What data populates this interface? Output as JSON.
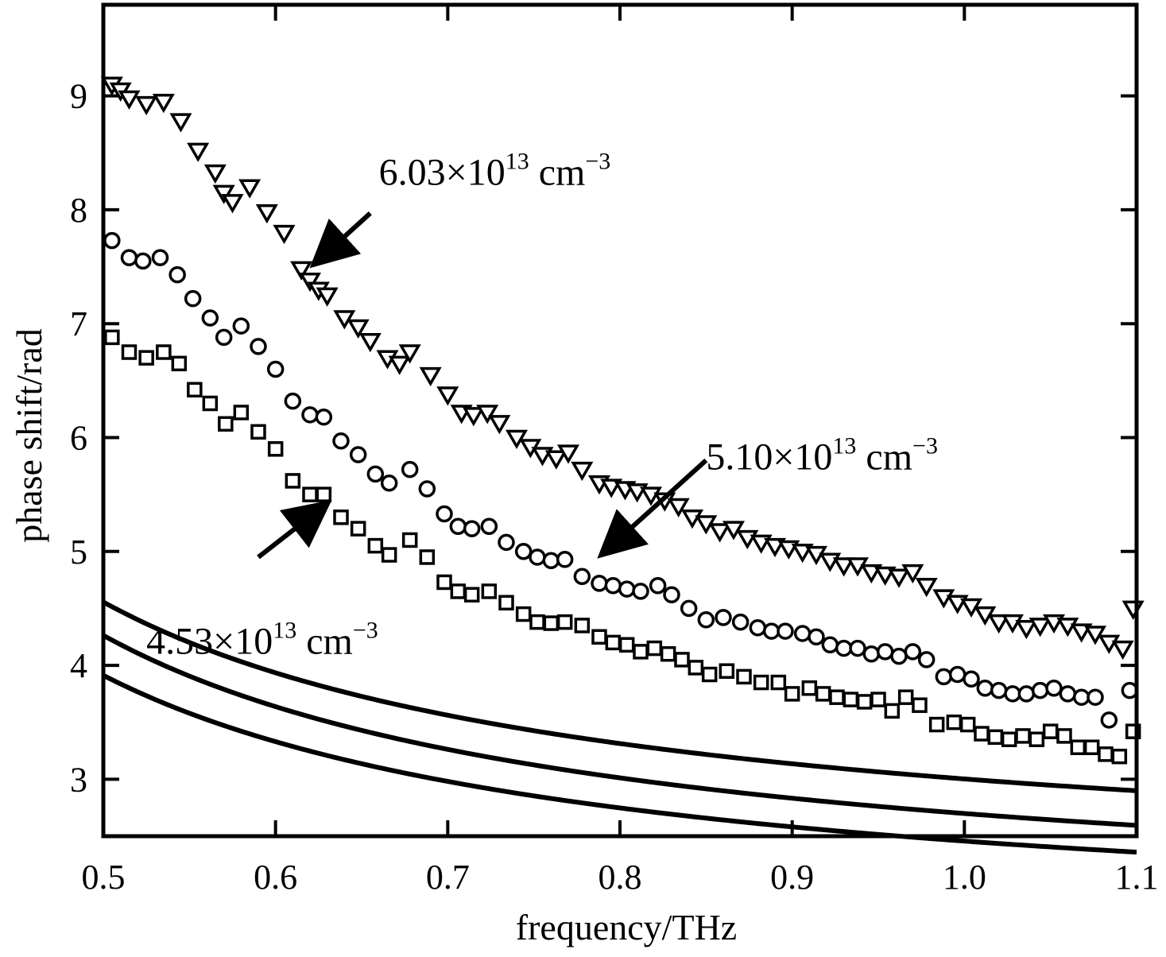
{
  "chart_data": {
    "type": "scatter",
    "xlabel": "frequency/THz",
    "ylabel": "phase shift/rad",
    "xlim": [
      0.5,
      1.1
    ],
    "ylim": [
      2.5,
      9.8
    ],
    "x_ticks": [
      0.5,
      0.6,
      0.7,
      0.8,
      0.9,
      1.0,
      1.1
    ],
    "x_tick_labels": [
      "0.5",
      "0.6",
      "0.7",
      "0.8",
      "0.9",
      "1.0",
      "1.1"
    ],
    "y_ticks": [
      3,
      4,
      5,
      6,
      7,
      8,
      9
    ],
    "y_tick_labels": [
      "3",
      "4",
      "5",
      "6",
      "7",
      "8",
      "9"
    ],
    "grid": false,
    "legend": "none",
    "colors": {
      "ink": "#000000",
      "background": "#ffffff"
    },
    "series": [
      {
        "marker": "triangle-down",
        "points": [
          [
            0.505,
            9.1
          ],
          [
            0.51,
            9.05
          ],
          [
            0.515,
            8.98
          ],
          [
            0.525,
            8.93
          ],
          [
            0.535,
            8.95
          ],
          [
            0.545,
            8.78
          ],
          [
            0.555,
            8.52
          ],
          [
            0.565,
            8.33
          ],
          [
            0.57,
            8.15
          ],
          [
            0.575,
            8.07
          ],
          [
            0.585,
            8.2
          ],
          [
            0.595,
            7.98
          ],
          [
            0.605,
            7.8
          ],
          [
            0.615,
            7.48
          ],
          [
            0.62,
            7.38
          ],
          [
            0.625,
            7.3
          ],
          [
            0.63,
            7.25
          ],
          [
            0.64,
            7.05
          ],
          [
            0.648,
            6.97
          ],
          [
            0.655,
            6.85
          ],
          [
            0.665,
            6.7
          ],
          [
            0.672,
            6.65
          ],
          [
            0.678,
            6.75
          ],
          [
            0.69,
            6.55
          ],
          [
            0.7,
            6.38
          ],
          [
            0.708,
            6.22
          ],
          [
            0.715,
            6.2
          ],
          [
            0.723,
            6.22
          ],
          [
            0.73,
            6.13
          ],
          [
            0.74,
            6.0
          ],
          [
            0.748,
            5.92
          ],
          [
            0.755,
            5.85
          ],
          [
            0.763,
            5.82
          ],
          [
            0.77,
            5.87
          ],
          [
            0.778,
            5.72
          ],
          [
            0.788,
            5.6
          ],
          [
            0.795,
            5.57
          ],
          [
            0.803,
            5.55
          ],
          [
            0.81,
            5.53
          ],
          [
            0.818,
            5.5
          ],
          [
            0.826,
            5.45
          ],
          [
            0.834,
            5.4
          ],
          [
            0.842,
            5.3
          ],
          [
            0.85,
            5.25
          ],
          [
            0.858,
            5.18
          ],
          [
            0.866,
            5.2
          ],
          [
            0.874,
            5.12
          ],
          [
            0.882,
            5.08
          ],
          [
            0.89,
            5.05
          ],
          [
            0.898,
            5.03
          ],
          [
            0.906,
            5.0
          ],
          [
            0.914,
            4.98
          ],
          [
            0.922,
            4.92
          ],
          [
            0.93,
            4.88
          ],
          [
            0.938,
            4.88
          ],
          [
            0.946,
            4.82
          ],
          [
            0.954,
            4.8
          ],
          [
            0.962,
            4.78
          ],
          [
            0.97,
            4.82
          ],
          [
            0.978,
            4.7
          ],
          [
            0.988,
            4.6
          ],
          [
            0.996,
            4.55
          ],
          [
            1.004,
            4.52
          ],
          [
            1.012,
            4.45
          ],
          [
            1.02,
            4.38
          ],
          [
            1.028,
            4.38
          ],
          [
            1.036,
            4.33
          ],
          [
            1.044,
            4.35
          ],
          [
            1.052,
            4.38
          ],
          [
            1.06,
            4.35
          ],
          [
            1.068,
            4.3
          ],
          [
            1.076,
            4.28
          ],
          [
            1.084,
            4.2
          ],
          [
            1.092,
            4.15
          ],
          [
            1.098,
            4.5
          ]
        ],
        "fit": {
          "a": 2.0705,
          "b": 3.5123,
          "c": 0.2123,
          "d": 0.2
        }
      },
      {
        "marker": "circle",
        "points": [
          [
            0.505,
            7.73
          ],
          [
            0.515,
            7.58
          ],
          [
            0.523,
            7.55
          ],
          [
            0.533,
            7.58
          ],
          [
            0.543,
            7.43
          ],
          [
            0.552,
            7.22
          ],
          [
            0.562,
            7.05
          ],
          [
            0.57,
            6.88
          ],
          [
            0.58,
            6.98
          ],
          [
            0.59,
            6.8
          ],
          [
            0.6,
            6.6
          ],
          [
            0.61,
            6.32
          ],
          [
            0.62,
            6.2
          ],
          [
            0.628,
            6.18
          ],
          [
            0.638,
            5.97
          ],
          [
            0.648,
            5.85
          ],
          [
            0.658,
            5.68
          ],
          [
            0.666,
            5.6
          ],
          [
            0.678,
            5.72
          ],
          [
            0.688,
            5.55
          ],
          [
            0.698,
            5.33
          ],
          [
            0.706,
            5.22
          ],
          [
            0.714,
            5.2
          ],
          [
            0.724,
            5.22
          ],
          [
            0.734,
            5.08
          ],
          [
            0.744,
            5.0
          ],
          [
            0.752,
            4.95
          ],
          [
            0.76,
            4.92
          ],
          [
            0.768,
            4.93
          ],
          [
            0.778,
            4.78
          ],
          [
            0.788,
            4.72
          ],
          [
            0.796,
            4.7
          ],
          [
            0.804,
            4.67
          ],
          [
            0.812,
            4.65
          ],
          [
            0.822,
            4.7
          ],
          [
            0.83,
            4.62
          ],
          [
            0.84,
            4.5
          ],
          [
            0.85,
            4.4
          ],
          [
            0.86,
            4.42
          ],
          [
            0.87,
            4.38
          ],
          [
            0.88,
            4.33
          ],
          [
            0.888,
            4.3
          ],
          [
            0.896,
            4.3
          ],
          [
            0.906,
            4.28
          ],
          [
            0.914,
            4.25
          ],
          [
            0.922,
            4.18
          ],
          [
            0.93,
            4.15
          ],
          [
            0.938,
            4.15
          ],
          [
            0.946,
            4.1
          ],
          [
            0.954,
            4.12
          ],
          [
            0.962,
            4.08
          ],
          [
            0.97,
            4.12
          ],
          [
            0.978,
            4.05
          ],
          [
            0.988,
            3.9
          ],
          [
            0.996,
            3.92
          ],
          [
            1.004,
            3.88
          ],
          [
            1.012,
            3.8
          ],
          [
            1.02,
            3.78
          ],
          [
            1.028,
            3.75
          ],
          [
            1.036,
            3.75
          ],
          [
            1.044,
            3.78
          ],
          [
            1.052,
            3.8
          ],
          [
            1.06,
            3.75
          ],
          [
            1.068,
            3.72
          ],
          [
            1.076,
            3.72
          ],
          [
            1.084,
            3.52
          ],
          [
            1.096,
            3.78
          ]
        ],
        "fit": {
          "a": 1.7609,
          "b": 3.5779,
          "c": 0.2098,
          "d": 0.2
        }
      },
      {
        "marker": "square",
        "points": [
          [
            0.505,
            6.88
          ],
          [
            0.515,
            6.75
          ],
          [
            0.525,
            6.7
          ],
          [
            0.535,
            6.75
          ],
          [
            0.544,
            6.65
          ],
          [
            0.553,
            6.42
          ],
          [
            0.562,
            6.3
          ],
          [
            0.571,
            6.12
          ],
          [
            0.58,
            6.22
          ],
          [
            0.59,
            6.05
          ],
          [
            0.6,
            5.9
          ],
          [
            0.61,
            5.62
          ],
          [
            0.62,
            5.5
          ],
          [
            0.628,
            5.5
          ],
          [
            0.638,
            5.3
          ],
          [
            0.648,
            5.2
          ],
          [
            0.658,
            5.05
          ],
          [
            0.666,
            4.97
          ],
          [
            0.678,
            5.1
          ],
          [
            0.688,
            4.95
          ],
          [
            0.698,
            4.73
          ],
          [
            0.706,
            4.65
          ],
          [
            0.714,
            4.62
          ],
          [
            0.724,
            4.65
          ],
          [
            0.734,
            4.55
          ],
          [
            0.744,
            4.45
          ],
          [
            0.752,
            4.38
          ],
          [
            0.76,
            4.37
          ],
          [
            0.768,
            4.38
          ],
          [
            0.778,
            4.35
          ],
          [
            0.788,
            4.25
          ],
          [
            0.796,
            4.2
          ],
          [
            0.804,
            4.18
          ],
          [
            0.812,
            4.12
          ],
          [
            0.82,
            4.15
          ],
          [
            0.828,
            4.1
          ],
          [
            0.836,
            4.05
          ],
          [
            0.844,
            3.98
          ],
          [
            0.852,
            3.92
          ],
          [
            0.862,
            3.95
          ],
          [
            0.872,
            3.9
          ],
          [
            0.882,
            3.85
          ],
          [
            0.892,
            3.85
          ],
          [
            0.9,
            3.75
          ],
          [
            0.91,
            3.8
          ],
          [
            0.918,
            3.75
          ],
          [
            0.926,
            3.72
          ],
          [
            0.934,
            3.7
          ],
          [
            0.942,
            3.68
          ],
          [
            0.95,
            3.7
          ],
          [
            0.958,
            3.6
          ],
          [
            0.966,
            3.72
          ],
          [
            0.974,
            3.65
          ],
          [
            0.984,
            3.48
          ],
          [
            0.994,
            3.5
          ],
          [
            1.002,
            3.48
          ],
          [
            1.01,
            3.4
          ],
          [
            1.018,
            3.37
          ],
          [
            1.026,
            3.35
          ],
          [
            1.034,
            3.38
          ],
          [
            1.042,
            3.35
          ],
          [
            1.05,
            3.42
          ],
          [
            1.058,
            3.38
          ],
          [
            1.066,
            3.28
          ],
          [
            1.074,
            3.28
          ],
          [
            1.082,
            3.22
          ],
          [
            1.09,
            3.2
          ],
          [
            1.098,
            3.42
          ]
        ],
        "fit": {
          "a": 1.5837,
          "b": 3.2906,
          "c": 0.2123,
          "d": 0.2
        }
      }
    ],
    "annotations": [
      {
        "base": "6.03×10",
        "exp": "13",
        "unit": "cm",
        "unit_exp": "−3",
        "text_at": [
          0.66,
          8.22
        ],
        "arrow_from": [
          0.655,
          7.97
        ],
        "arrow_to": [
          0.628,
          7.6
        ]
      },
      {
        "base": "5.10×10",
        "exp": "13",
        "unit": "cm",
        "unit_exp": "−3",
        "text_at": [
          0.85,
          5.72
        ],
        "arrow_from": [
          0.85,
          5.8
        ],
        "arrow_to": [
          0.795,
          5.05
        ]
      },
      {
        "base": "4.53×10",
        "exp": "13",
        "unit": "cm",
        "unit_exp": "−3",
        "text_at": [
          0.525,
          4.1
        ],
        "arrow_from": [
          0.59,
          4.95
        ],
        "arrow_to": [
          0.624,
          5.35
        ]
      }
    ]
  }
}
